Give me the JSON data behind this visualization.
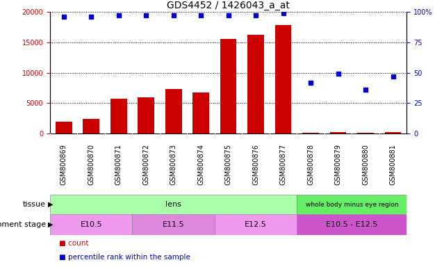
{
  "title": "GDS4452 / 1426043_a_at",
  "samples": [
    "GSM800869",
    "GSM800870",
    "GSM800871",
    "GSM800872",
    "GSM800873",
    "GSM800874",
    "GSM800875",
    "GSM800876",
    "GSM800877",
    "GSM800878",
    "GSM800879",
    "GSM800880",
    "GSM800881"
  ],
  "counts": [
    1900,
    2400,
    5700,
    5950,
    7300,
    6750,
    15500,
    16200,
    17800,
    150,
    200,
    180,
    200
  ],
  "percentiles": [
    96,
    96,
    97,
    97,
    97,
    97,
    97,
    97,
    99,
    42,
    49,
    36,
    47
  ],
  "bar_color": "#cc0000",
  "dot_color": "#0000cc",
  "ylim_left": [
    0,
    20000
  ],
  "ylim_right": [
    0,
    100
  ],
  "yticks_left": [
    0,
    5000,
    10000,
    15000,
    20000
  ],
  "yticks_right": [
    0,
    25,
    50,
    75,
    100
  ],
  "tissue_lens_color": "#aaffaa",
  "tissue_wbmer_color": "#66ee66",
  "tissue_groups": [
    {
      "label": "lens",
      "start": 0,
      "end": 8
    },
    {
      "label": "whole body minus eye region",
      "start": 9,
      "end": 12
    }
  ],
  "dev_stage_groups": [
    {
      "label": "E10.5",
      "start": 0,
      "end": 2,
      "color": "#dd88dd"
    },
    {
      "label": "E11.5",
      "start": 3,
      "end": 5,
      "color": "#cc77cc"
    },
    {
      "label": "E12.5",
      "start": 6,
      "end": 8,
      "color": "#dd88dd"
    },
    {
      "label": "E10.5 - E12.5",
      "start": 9,
      "end": 12,
      "color": "#cc44cc"
    }
  ],
  "sample_bg_color": "#cccccc",
  "legend_count_color": "#cc0000",
  "legend_dot_color": "#0000cc",
  "background_color": "#ffffff",
  "title_fontsize": 10,
  "tick_fontsize": 7,
  "label_fontsize": 8,
  "small_label_fontsize": 6.5
}
